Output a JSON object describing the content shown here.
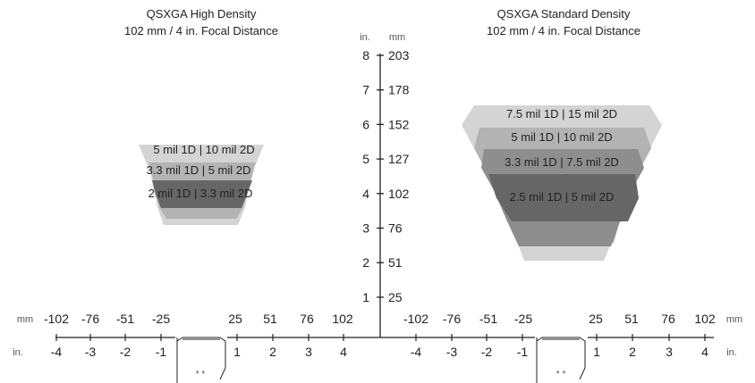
{
  "left": {
    "title_line1": "QSXGA High Density",
    "title_line2": "102 mm / 4 in. Focal Distance",
    "zones": [
      "5 mil 1D | 10 mil 2D",
      "3.3 mil 1D | 5 mil 2D",
      "2 mil 1D | 3.3 mil 2D"
    ]
  },
  "right": {
    "title_line1": "QSXGA Standard Density",
    "title_line2": "102 mm / 4 in. Focal Distance",
    "zones": [
      "7.5 mil 1D | 15 mil 2D",
      "5 mil 1D | 10 mil 2D",
      "3.3 mil 1D | 7.5 mil 2D",
      "2.5 mil 1D | 5 mil 2D"
    ]
  },
  "vertical_axis": {
    "unit_in": "in.",
    "unit_mm": "mm",
    "inches": [
      "8",
      "7",
      "6",
      "5",
      "4",
      "3",
      "2",
      "1"
    ],
    "mm": [
      "203",
      "178",
      "152",
      "127",
      "102",
      "76",
      "51",
      "25"
    ]
  },
  "horizontal_axis": {
    "unit_mm": "mm",
    "unit_in": "in.",
    "mm_neg": [
      "-102",
      "-76",
      "-51",
      "-25"
    ],
    "mm_pos": [
      "25",
      "51",
      "76",
      "102"
    ],
    "in_neg": [
      "-4",
      "-3",
      "-2",
      "-1"
    ],
    "in_pos": [
      "1",
      "2",
      "3",
      "4"
    ]
  },
  "reader_marks": "* *",
  "colors": {
    "zone_lightest": "#d4d4d4",
    "zone_light": "#b3b3b3",
    "zone_mid": "#8e8e8e",
    "zone_dark": "#666666"
  }
}
